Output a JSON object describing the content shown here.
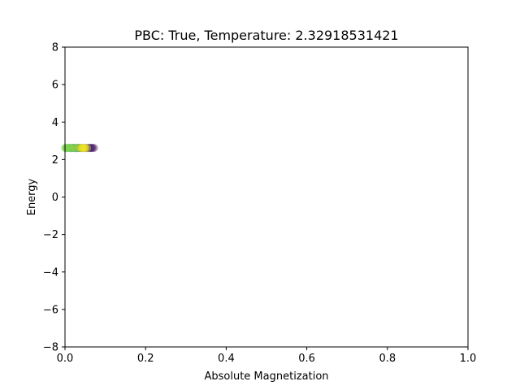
{
  "chart_data": {
    "type": "scatter",
    "title": "PBC: True, Temperature: 2.32918531421",
    "xlabel": "Absolute Magnetization",
    "ylabel": "Energy",
    "xlim": [
      0.0,
      1.0
    ],
    "ylim": [
      -8,
      8
    ],
    "xticks": [
      0.0,
      0.2,
      0.4,
      0.6,
      0.8,
      1.0
    ],
    "xtick_labels": [
      "0.0",
      "0.2",
      "0.4",
      "0.6",
      "0.8",
      "1.0"
    ],
    "yticks": [
      -8,
      -6,
      -4,
      -2,
      0,
      2,
      4,
      6,
      8
    ],
    "ytick_labels": [
      "−8",
      "−6",
      "−4",
      "−2",
      "0",
      "2",
      "4",
      "6",
      "8"
    ],
    "grid": false,
    "colormap": "viridis",
    "marker_alpha": 0.35,
    "points": [
      {
        "x": 0.072,
        "y": 2.62,
        "color": "#440154"
      },
      {
        "x": 0.068,
        "y": 2.62,
        "color": "#46085c"
      },
      {
        "x": 0.066,
        "y": 2.63,
        "color": "#471063"
      },
      {
        "x": 0.064,
        "y": 2.61,
        "color": "#481769"
      },
      {
        "x": 0.062,
        "y": 2.62,
        "color": "#481d6f"
      },
      {
        "x": 0.06,
        "y": 2.62,
        "color": "#482475"
      },
      {
        "x": 0.058,
        "y": 2.63,
        "color": "#472a7a"
      },
      {
        "x": 0.056,
        "y": 2.61,
        "color": "#46307e"
      },
      {
        "x": 0.054,
        "y": 2.62,
        "color": "#453781"
      },
      {
        "x": 0.052,
        "y": 2.62,
        "color": "#433d84"
      },
      {
        "x": 0.05,
        "y": 2.63,
        "color": "#414287"
      },
      {
        "x": 0.048,
        "y": 2.61,
        "color": "#3e4989"
      },
      {
        "x": 0.046,
        "y": 2.62,
        "color": "#3c4f8a"
      },
      {
        "x": 0.044,
        "y": 2.62,
        "color": "#39558c"
      },
      {
        "x": 0.042,
        "y": 2.63,
        "color": "#365c8d"
      },
      {
        "x": 0.04,
        "y": 2.61,
        "color": "#33628d"
      },
      {
        "x": 0.038,
        "y": 2.62,
        "color": "#31688e"
      },
      {
        "x": 0.036,
        "y": 2.62,
        "color": "#2e6d8e"
      },
      {
        "x": 0.034,
        "y": 2.63,
        "color": "#2c728e"
      },
      {
        "x": 0.032,
        "y": 2.61,
        "color": "#29788e"
      },
      {
        "x": 0.03,
        "y": 2.62,
        "color": "#277e8e"
      },
      {
        "x": 0.028,
        "y": 2.62,
        "color": "#25838e"
      },
      {
        "x": 0.026,
        "y": 2.63,
        "color": "#23898e"
      },
      {
        "x": 0.024,
        "y": 2.61,
        "color": "#218e8d"
      },
      {
        "x": 0.022,
        "y": 2.62,
        "color": "#1f948c"
      },
      {
        "x": 0.02,
        "y": 2.62,
        "color": "#1e9a8a"
      },
      {
        "x": 0.018,
        "y": 2.63,
        "color": "#1fa088"
      },
      {
        "x": 0.016,
        "y": 2.61,
        "color": "#22a785"
      },
      {
        "x": 0.014,
        "y": 2.62,
        "color": "#28ae80"
      },
      {
        "x": 0.012,
        "y": 2.62,
        "color": "#2fb47c"
      },
      {
        "x": 0.01,
        "y": 2.63,
        "color": "#3bbb75"
      },
      {
        "x": 0.008,
        "y": 2.61,
        "color": "#48c16e"
      },
      {
        "x": 0.006,
        "y": 2.62,
        "color": "#56c667"
      },
      {
        "x": 0.004,
        "y": 2.62,
        "color": "#65cb5e"
      },
      {
        "x": 0.002,
        "y": 2.63,
        "color": "#75d054"
      },
      {
        "x": 0.0,
        "y": 2.62,
        "color": "#7ad151"
      },
      {
        "x": 0.003,
        "y": 2.6,
        "color": "#7ad151"
      },
      {
        "x": 0.009,
        "y": 2.64,
        "color": "#86d549"
      },
      {
        "x": 0.015,
        "y": 2.6,
        "color": "#95d840"
      },
      {
        "x": 0.021,
        "y": 2.64,
        "color": "#a2da37"
      },
      {
        "x": 0.027,
        "y": 2.6,
        "color": "#b0dd2f"
      },
      {
        "x": 0.033,
        "y": 2.64,
        "color": "#bade28"
      },
      {
        "x": 0.039,
        "y": 2.62,
        "color": "#c8e020"
      },
      {
        "x": 0.043,
        "y": 2.62,
        "color": "#d2e21b"
      },
      {
        "x": 0.047,
        "y": 2.62,
        "color": "#dde318"
      },
      {
        "x": 0.051,
        "y": 2.63,
        "color": "#e5e419"
      },
      {
        "x": 0.055,
        "y": 2.61,
        "color": "#eae51a"
      },
      {
        "x": 0.041,
        "y": 2.62,
        "color": "#fde725"
      },
      {
        "x": 0.045,
        "y": 2.62,
        "color": "#fde725"
      },
      {
        "x": 0.049,
        "y": 2.62,
        "color": "#fde725"
      }
    ]
  }
}
